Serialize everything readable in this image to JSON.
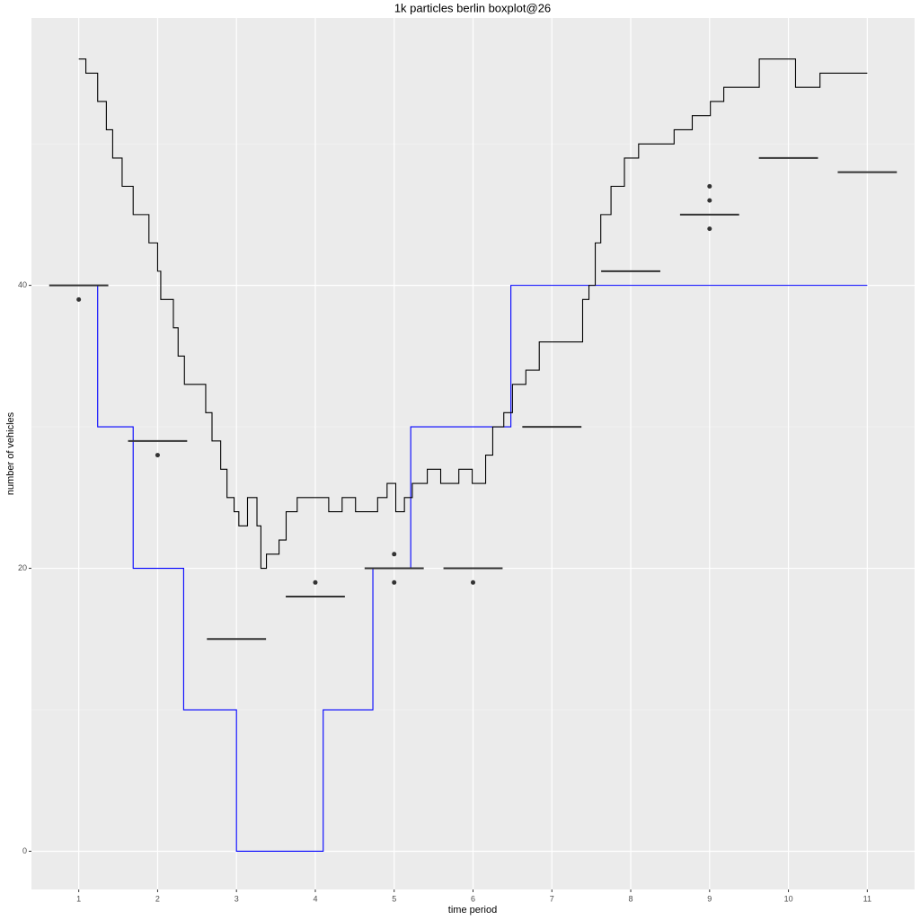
{
  "chart_data": {
    "type": "boxplot",
    "title": "1k particles berlin boxplot@26",
    "x_label": "time period",
    "y_label": "number of vehicles",
    "xlim": [
      0.4,
      11.6
    ],
    "ylim": [
      -2.7,
      58.9
    ],
    "xticks": [
      1,
      2,
      3,
      4,
      5,
      6,
      7,
      8,
      9,
      10,
      11
    ],
    "yticks": [
      0,
      20,
      40
    ],
    "y_minor_ticks": [
      10,
      30,
      50
    ],
    "grid": true,
    "x": [
      1,
      2,
      3,
      4,
      5,
      6,
      7,
      8,
      9,
      10,
      11
    ],
    "medians": [
      40,
      29,
      15,
      18,
      20,
      20,
      30,
      41,
      45,
      49,
      48
    ],
    "outliers": {
      "x": [
        1,
        2,
        4,
        5,
        5,
        6,
        9,
        9,
        9
      ],
      "values": [
        39,
        28,
        19,
        21,
        19,
        19,
        47,
        46,
        44
      ]
    },
    "box_color": "#333333",
    "series": [
      {
        "type": "line",
        "step": "hv",
        "color": "#0000ff",
        "x": [
          1,
          1.24,
          1.69,
          2.33,
          3.0,
          4.1,
          4.73,
          5.21,
          6.48,
          11
        ],
        "values": [
          40,
          30,
          20,
          10,
          0,
          10,
          20,
          30,
          40,
          40
        ]
      },
      {
        "type": "line",
        "step": "hv",
        "color": "#000000",
        "x": [
          1.0,
          1.09,
          1.24,
          1.35,
          1.43,
          1.55,
          1.69,
          1.89,
          2.0,
          2.04,
          2.2,
          2.26,
          2.34,
          2.61,
          2.69,
          2.8,
          2.88,
          2.97,
          3.03,
          3.14,
          3.26,
          3.31,
          3.38,
          3.54,
          3.63,
          3.77,
          4.0,
          4.17,
          4.34,
          4.51,
          4.79,
          4.91,
          5.02,
          5.13,
          5.23,
          5.42,
          5.59,
          5.82,
          5.99,
          6.16,
          6.25,
          6.39,
          6.5,
          6.67,
          6.84,
          7.3,
          7.39,
          7.47,
          7.55,
          7.62,
          7.75,
          7.92,
          8.1,
          8.55,
          8.78,
          9.01,
          9.18,
          9.63,
          10.09,
          10.4,
          11.0
        ],
        "values": [
          56,
          55,
          53,
          51,
          49,
          47,
          45,
          43,
          41,
          39,
          37,
          35,
          33,
          31,
          29,
          27,
          25,
          24,
          23,
          25,
          23,
          20,
          21,
          22,
          24,
          25,
          25,
          24,
          25,
          24,
          25,
          26,
          24,
          25,
          26,
          27,
          26,
          27,
          26,
          28,
          30,
          31,
          33,
          34,
          36,
          36,
          39,
          40,
          43,
          45,
          47,
          49,
          50,
          51,
          52,
          53,
          54,
          56,
          54,
          55,
          55
        ]
      }
    ]
  }
}
